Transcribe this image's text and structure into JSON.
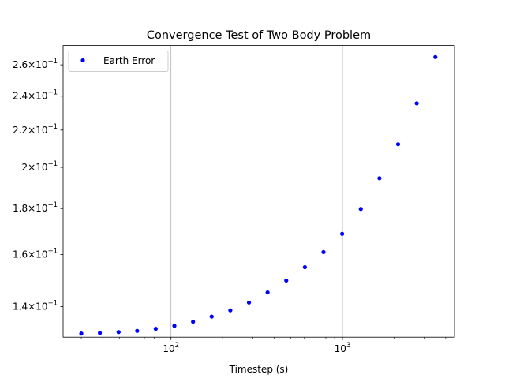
{
  "chart_data": {
    "type": "scatter",
    "title": "Convergence Test of Two Body Problem",
    "xlabel": "Timestep (s)",
    "ylabel": "",
    "x_scale": "log",
    "y_scale": "log",
    "xlim": [
      23.5,
      4500
    ],
    "ylim": [
      0.1295,
      0.2732
    ],
    "grid": "x-major",
    "legend_position": "upper left",
    "x_ticks": [
      {
        "value": 100,
        "base": "10",
        "exp": "2"
      },
      {
        "value": 1000,
        "base": "10",
        "exp": "3"
      }
    ],
    "y_ticks": [
      {
        "value": 0.14,
        "mant": "1.4",
        "base": "10",
        "exp": "−1"
      },
      {
        "value": 0.16,
        "mant": "1.6",
        "base": "10",
        "exp": "−1"
      },
      {
        "value": 0.18,
        "mant": "1.8",
        "base": "10",
        "exp": "−1"
      },
      {
        "value": 0.2,
        "mant": "2",
        "base": "10",
        "exp": "−1"
      },
      {
        "value": 0.22,
        "mant": "2.2",
        "base": "10",
        "exp": "−1"
      },
      {
        "value": 0.24,
        "mant": "2.4",
        "base": "10",
        "exp": "−1"
      },
      {
        "value": 0.26,
        "mant": "2.6",
        "base": "10",
        "exp": "−1"
      }
    ],
    "series": [
      {
        "name": "Earth Error",
        "color": "#0000ff",
        "marker": "circle",
        "x": [
          30,
          38.5,
          49.5,
          63.5,
          81.5,
          104.7,
          134.5,
          172.7,
          221.8,
          284.9,
          365.9,
          470,
          603.6,
          775.2,
          995.7,
          1278.9,
          1642.5,
          2109.6,
          2709.5,
          3480
        ],
        "y": [
          0.1307,
          0.1309,
          0.1312,
          0.1316,
          0.1323,
          0.1333,
          0.1347,
          0.1365,
          0.1387,
          0.1415,
          0.1452,
          0.1497,
          0.1549,
          0.161,
          0.1687,
          0.1798,
          0.1945,
          0.2122,
          0.2356,
          0.2652
        ]
      }
    ]
  }
}
